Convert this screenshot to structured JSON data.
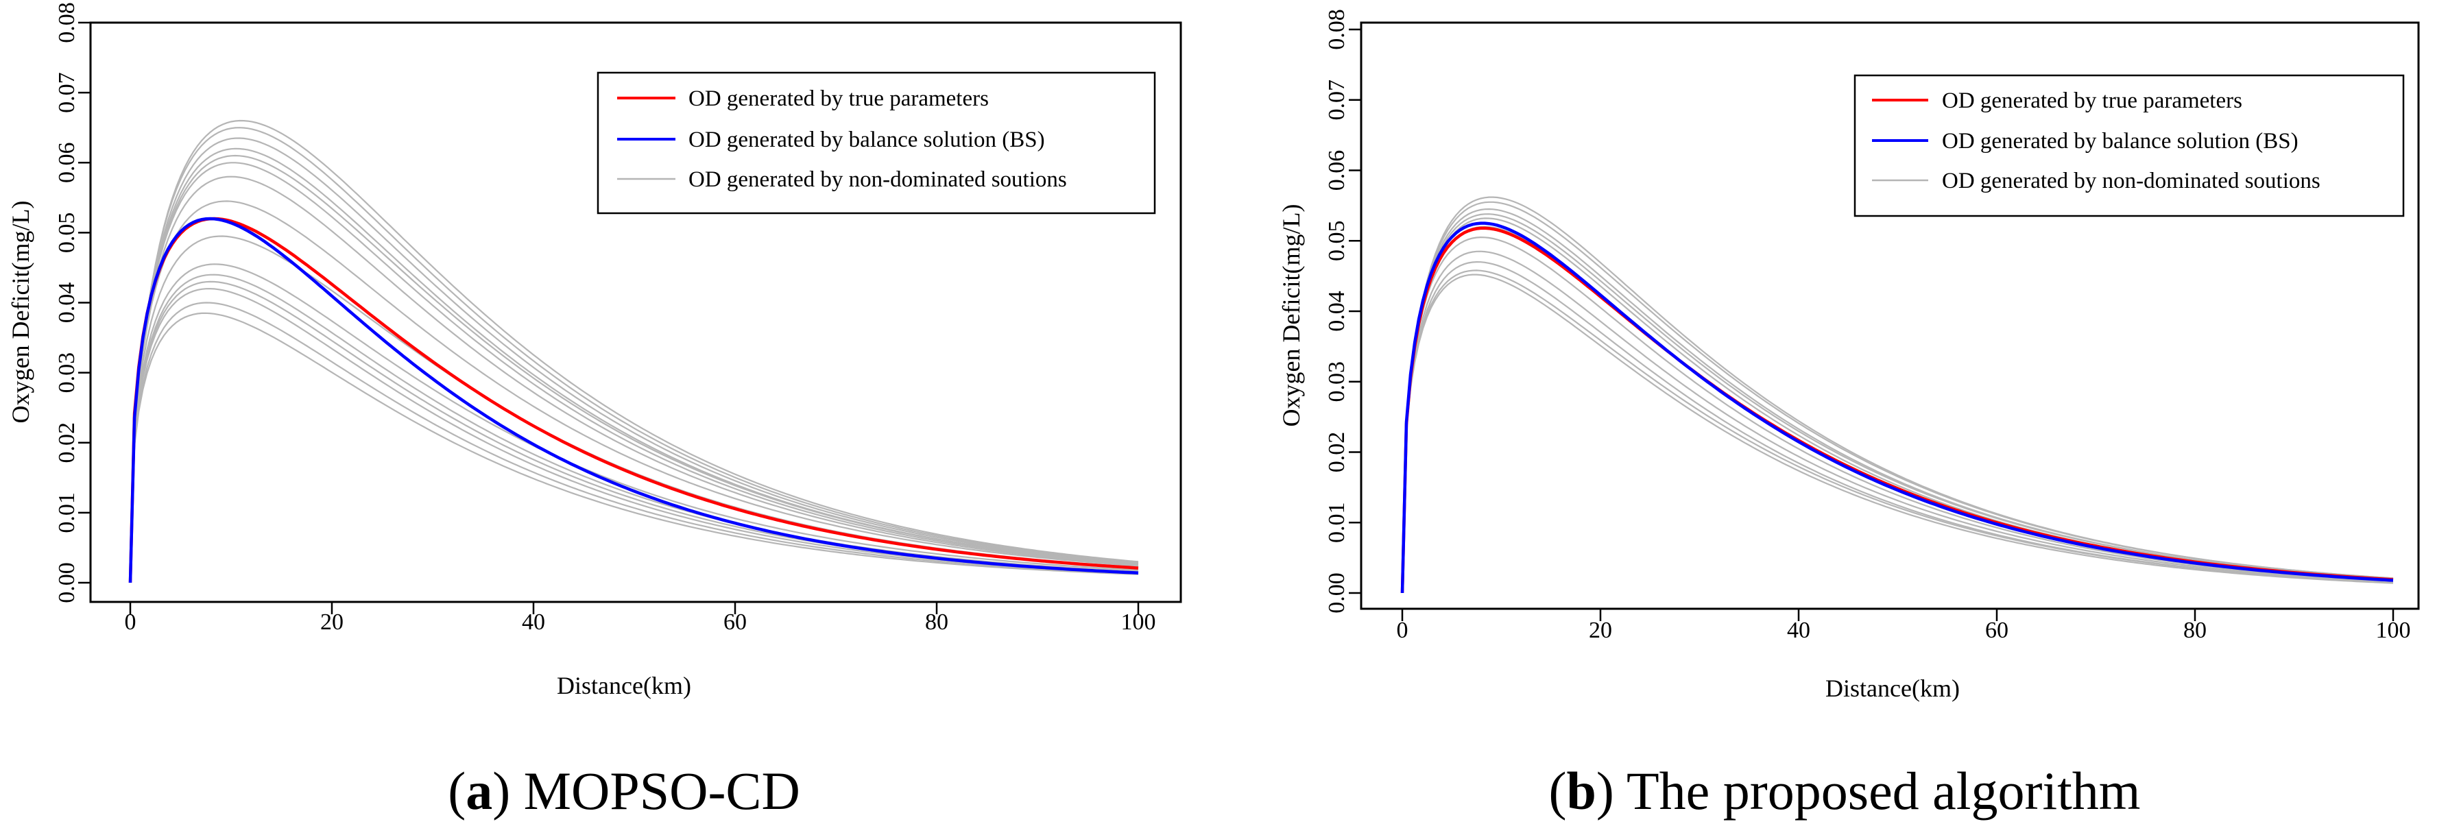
{
  "chart_data": [
    {
      "type": "line",
      "caption": {
        "letter": "a",
        "text": "MOPSO-CD"
      },
      "xlabel": "Distance(km)",
      "ylabel": "Oxygen Deficit(mg/L)",
      "xlim": [
        0,
        100
      ],
      "ylim": [
        0,
        0.08
      ],
      "x_ticks": [
        "0",
        "20",
        "40",
        "60",
        "80",
        "100"
      ],
      "y_ticks": [
        "0.00",
        "0.01",
        "0.02",
        "0.03",
        "0.04",
        "0.05",
        "0.06",
        "0.07",
        "0.08"
      ],
      "legend": {
        "position": "top-right",
        "entries": [
          {
            "label": "OD generated by true parameters",
            "color": "#ff0000"
          },
          {
            "label": "OD generated by balance solution (BS)",
            "color": "#0000ff"
          },
          {
            "label": "OD generated by non-dominated soutions",
            "color": "#b5b5b5"
          }
        ]
      },
      "series": [
        {
          "name": "OD generated by true parameters",
          "color": "#ff0000",
          "peak_x": 8.3,
          "peak_y": 0.052,
          "end_y": 0.0021
        },
        {
          "name": "OD generated by balance solution (BS)",
          "color": "#0000ff",
          "peak_x": 7.9,
          "peak_y": 0.052,
          "end_y": 0.0014
        }
      ],
      "nondominated": {
        "name": "OD generated by non-dominated soutions",
        "color": "#b5b5b5",
        "curves": [
          {
            "peak_x": 11.0,
            "peak_y": 0.066,
            "end_y": 0.003
          },
          {
            "peak_x": 10.8,
            "peak_y": 0.065,
            "end_y": 0.0029
          },
          {
            "peak_x": 10.7,
            "peak_y": 0.0635,
            "end_y": 0.0028
          },
          {
            "peak_x": 10.5,
            "peak_y": 0.062,
            "end_y": 0.0027
          },
          {
            "peak_x": 10.4,
            "peak_y": 0.061,
            "end_y": 0.0027
          },
          {
            "peak_x": 10.2,
            "peak_y": 0.06,
            "end_y": 0.0026
          },
          {
            "peak_x": 10.0,
            "peak_y": 0.058,
            "end_y": 0.0025
          },
          {
            "peak_x": 9.5,
            "peak_y": 0.0545,
            "end_y": 0.0024
          },
          {
            "peak_x": 9.0,
            "peak_y": 0.0495,
            "end_y": 0.0022
          },
          {
            "peak_x": 8.4,
            "peak_y": 0.0455,
            "end_y": 0.0018
          },
          {
            "peak_x": 8.2,
            "peak_y": 0.044,
            "end_y": 0.0016
          },
          {
            "peak_x": 8.0,
            "peak_y": 0.043,
            "end_y": 0.0015
          },
          {
            "peak_x": 7.8,
            "peak_y": 0.042,
            "end_y": 0.0014
          },
          {
            "peak_x": 7.6,
            "peak_y": 0.04,
            "end_y": 0.0013
          },
          {
            "peak_x": 7.4,
            "peak_y": 0.0385,
            "end_y": 0.0012
          }
        ]
      }
    },
    {
      "type": "line",
      "caption": {
        "letter": "b",
        "text": "The proposed algorithm"
      },
      "xlabel": "Distance(km)",
      "ylabel": "Oxygen Deficit(mg/L)",
      "xlim": [
        0,
        100
      ],
      "ylim": [
        0,
        0.08
      ],
      "x_ticks": [
        "0",
        "20",
        "40",
        "60",
        "80",
        "100"
      ],
      "y_ticks": [
        "0.00",
        "0.01",
        "0.02",
        "0.03",
        "0.04",
        "0.05",
        "0.06",
        "0.07",
        "0.08"
      ],
      "legend": {
        "position": "top-right",
        "entries": [
          {
            "label": "OD generated by true parameters",
            "color": "#ff0000"
          },
          {
            "label": "OD generated by balance solution (BS)",
            "color": "#0000ff"
          },
          {
            "label": "OD generated by non-dominated soutions",
            "color": "#b5b5b5"
          }
        ]
      },
      "series": [
        {
          "name": "OD generated by true parameters",
          "color": "#ff0000",
          "peak_x": 8.2,
          "peak_y": 0.0518,
          "end_y": 0.0019
        },
        {
          "name": "OD generated by balance solution (BS)",
          "color": "#0000ff",
          "peak_x": 8.1,
          "peak_y": 0.0525,
          "end_y": 0.0018
        }
      ],
      "nondominated": {
        "name": "OD generated by non-dominated soutions",
        "color": "#b5b5b5",
        "curves": [
          {
            "peak_x": 9.0,
            "peak_y": 0.0562,
            "end_y": 0.0021
          },
          {
            "peak_x": 8.9,
            "peak_y": 0.0555,
            "end_y": 0.0021
          },
          {
            "peak_x": 8.7,
            "peak_y": 0.0545,
            "end_y": 0.002
          },
          {
            "peak_x": 8.6,
            "peak_y": 0.0538,
            "end_y": 0.002
          },
          {
            "peak_x": 8.5,
            "peak_y": 0.0532,
            "end_y": 0.0019
          },
          {
            "peak_x": 8.3,
            "peak_y": 0.052,
            "end_y": 0.0018
          },
          {
            "peak_x": 8.0,
            "peak_y": 0.0505,
            "end_y": 0.0017
          },
          {
            "peak_x": 7.8,
            "peak_y": 0.0485,
            "end_y": 0.0016
          },
          {
            "peak_x": 7.6,
            "peak_y": 0.047,
            "end_y": 0.0015
          },
          {
            "peak_x": 7.4,
            "peak_y": 0.0458,
            "end_y": 0.0015
          },
          {
            "peak_x": 7.3,
            "peak_y": 0.0452,
            "end_y": 0.0014
          }
        ]
      }
    }
  ]
}
